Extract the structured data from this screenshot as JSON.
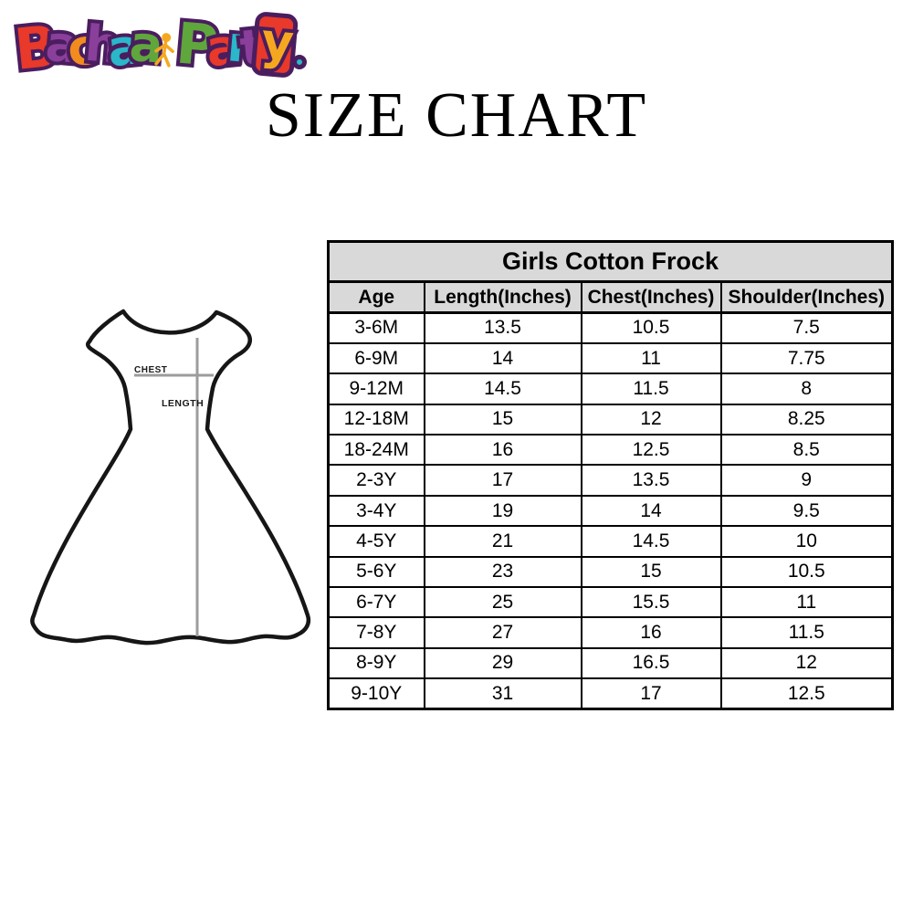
{
  "brand": {
    "name": "Bachaa Party.",
    "outline_color": "#4a1d5f",
    "glyphs": [
      {
        "ch": "B",
        "color": "#e8392b",
        "cap": true
      },
      {
        "ch": "a",
        "color": "#8a3f9b"
      },
      {
        "ch": "c",
        "color": "#f28c1e"
      },
      {
        "ch": "h",
        "color": "#8a3f9b"
      },
      {
        "ch": "a",
        "color": "#2ab7c9"
      },
      {
        "ch": "a",
        "color": "#5fa63c"
      },
      {
        "type": "child-figure",
        "color": "#f5a81f"
      },
      {
        "ch": "P",
        "color": "#5fa63c",
        "cap": true
      },
      {
        "ch": "a",
        "color": "#e8392b"
      },
      {
        "ch": "r",
        "color": "#2ab7c9"
      },
      {
        "ch": "t",
        "color": "#8a3f9b"
      },
      {
        "ch": "y",
        "color": "#f5a81f",
        "bg": "#e8392b"
      },
      {
        "type": "dot",
        "color": "#2ab7c9"
      }
    ]
  },
  "page_title": "SIZE CHART",
  "diagram": {
    "chest_label": "CHEST",
    "length_label": "LENGTH",
    "line_color": "#9c9c9c",
    "outline_color": "#161616"
  },
  "table": {
    "title": "Girls Cotton Frock",
    "header_bg": "#d9d9d9",
    "columns": [
      "Age",
      "Length(Inches)",
      "Chest(Inches)",
      "Shoulder(Inches)"
    ],
    "rows": [
      [
        "3-6M",
        "13.5",
        "10.5",
        "7.5"
      ],
      [
        "6-9M",
        "14",
        "11",
        "7.75"
      ],
      [
        "9-12M",
        "14.5",
        "11.5",
        "8"
      ],
      [
        "12-18M",
        "15",
        "12",
        "8.25"
      ],
      [
        "18-24M",
        "16",
        "12.5",
        "8.5"
      ],
      [
        "2-3Y",
        "17",
        "13.5",
        "9"
      ],
      [
        "3-4Y",
        "19",
        "14",
        "9.5"
      ],
      [
        "4-5Y",
        "21",
        "14.5",
        "10"
      ],
      [
        "5-6Y",
        "23",
        "15",
        "10.5"
      ],
      [
        "6-7Y",
        "25",
        "15.5",
        "11"
      ],
      [
        "7-8Y",
        "27",
        "16",
        "11.5"
      ],
      [
        "8-9Y",
        "29",
        "16.5",
        "12"
      ],
      [
        "9-10Y",
        "31",
        "17",
        "12.5"
      ]
    ]
  }
}
